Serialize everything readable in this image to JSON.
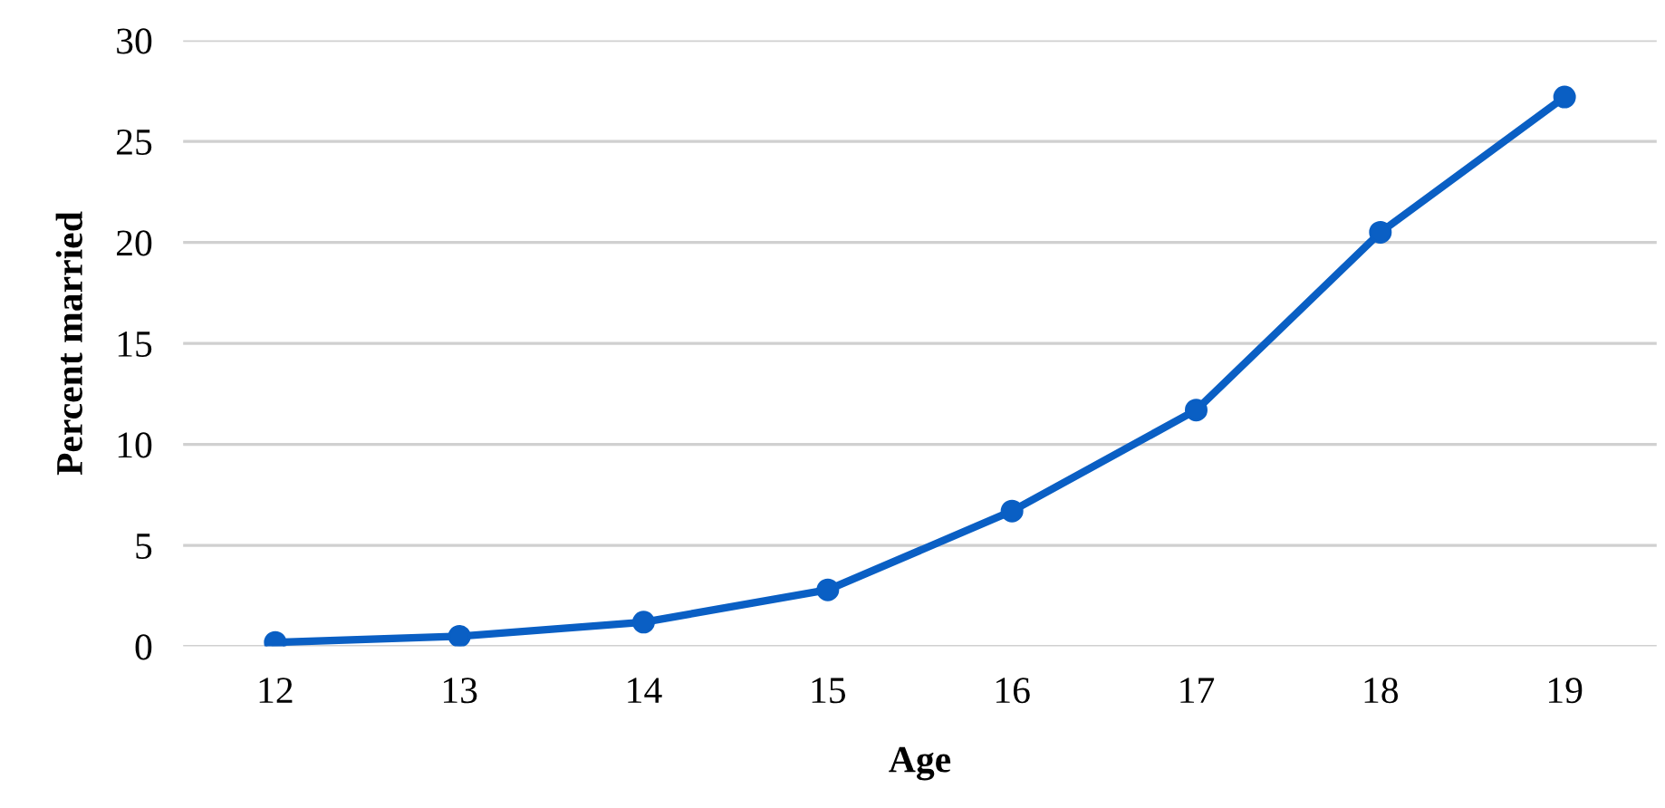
{
  "chart_data": {
    "type": "line",
    "xlabel": "Age",
    "ylabel": "Percent married",
    "categories": [
      "12",
      "13",
      "14",
      "15",
      "16",
      "17",
      "18",
      "19"
    ],
    "series": [
      {
        "color": "#0a5fc4",
        "values": [
          0.2,
          0.5,
          1.2,
          2.8,
          6.7,
          11.7,
          20.5,
          27.2
        ]
      }
    ],
    "ylim": [
      0,
      30
    ],
    "yticks": [
      0,
      5,
      10,
      15,
      20,
      25,
      30
    ],
    "grid": "y",
    "marker": "circle",
    "line_style": "solid"
  }
}
